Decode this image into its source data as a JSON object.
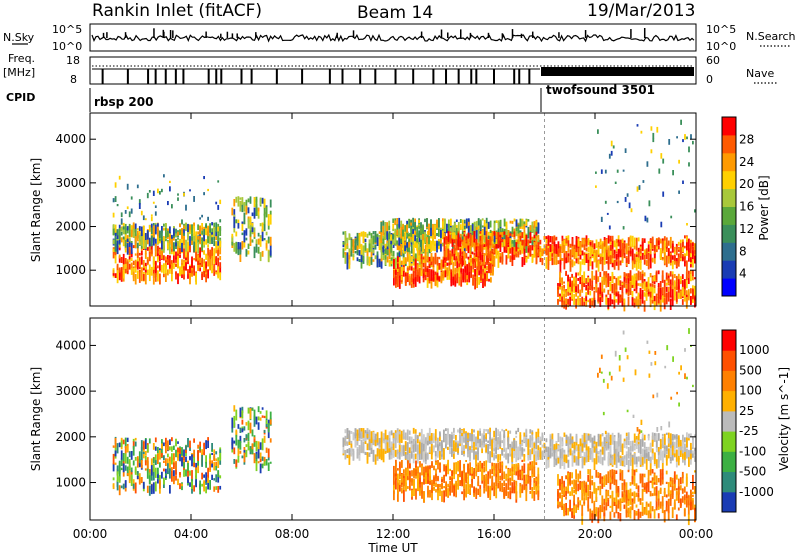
{
  "header": {
    "title": "Rankin Inlet (fitACF)",
    "beam": "Beam 14",
    "date": "19/Mar/2013"
  },
  "left_labels": {
    "nsky": "N.Sky",
    "freq": "Freq.",
    "freq_unit": "[MHz]",
    "cpid": "CPID"
  },
  "right_labels": {
    "nsearch": "N.Search",
    "nave": "Nave"
  },
  "nsky_ticks": {
    "top": "10^5",
    "bottom": "10^0"
  },
  "nsearch_ticks": {
    "top": "10^5",
    "bottom": "10^0"
  },
  "freq_ticks": {
    "top": "18",
    "bottom": "8"
  },
  "nave_ticks": {
    "top": "60",
    "bottom": "0"
  },
  "cpid": {
    "mode1": "rbsp 200",
    "mode2": "twofsound 3501",
    "mode2_start_hour": 18.0
  },
  "colors": {
    "red": "#ff0000",
    "orange": "#ff8c00",
    "yellow": "#ffd000",
    "green": "#3cb043",
    "teal": "#2e8b57",
    "blue": "#1a3cb4",
    "grey": "#bbbbbb"
  },
  "chart_data": [
    {
      "type": "heatmap",
      "name": "power-panel",
      "ylabel": "Slant Range [km]",
      "yticks": [
        "1000",
        "2000",
        "3000",
        "4000"
      ],
      "ylim": [
        180,
        4600
      ],
      "xlim": [
        0,
        24
      ],
      "xticks": [
        "00:00",
        "04:00",
        "08:00",
        "12:00",
        "16:00",
        "20:00",
        "00:00"
      ],
      "colorbar": {
        "label": "Power [dB]",
        "ticks": [
          "4",
          "8",
          "12",
          "16",
          "20",
          "24",
          "28"
        ],
        "colors": [
          "#0000ff",
          "#1a3cb4",
          "#2e6e8e",
          "#3a8f5a",
          "#5aa83a",
          "#a8c83a",
          "#ffd000",
          "#ff9a00",
          "#ff5a00",
          "#ff0000"
        ]
      },
      "regions": [
        {
          "t": [
            0.9,
            5.2
          ],
          "r": [
            900,
            1600
          ],
          "level": "high"
        },
        {
          "t": [
            0.9,
            5.2
          ],
          "r": [
            1600,
            2100
          ],
          "level": "mid"
        },
        {
          "t": [
            0.9,
            5.2
          ],
          "r": [
            2100,
            3200
          ],
          "level": "sparse"
        },
        {
          "t": [
            5.6,
            7.2
          ],
          "r": [
            1400,
            2700
          ],
          "level": "mid"
        },
        {
          "t": [
            10.0,
            13.5
          ],
          "r": [
            1200,
            1900
          ],
          "level": "mid"
        },
        {
          "t": [
            11.5,
            17.8
          ],
          "r": [
            1600,
            2200
          ],
          "level": "mid"
        },
        {
          "t": [
            12.0,
            16.0
          ],
          "r": [
            800,
            1400
          ],
          "level": "high"
        },
        {
          "t": [
            14.0,
            17.8
          ],
          "r": [
            1300,
            1900
          ],
          "level": "high"
        },
        {
          "t": [
            17.8,
            24.0
          ],
          "r": [
            1200,
            1800
          ],
          "level": "high"
        },
        {
          "t": [
            18.5,
            24.0
          ],
          "r": [
            300,
            1000
          ],
          "level": "high"
        },
        {
          "t": [
            20.0,
            24.0
          ],
          "r": [
            2000,
            4500
          ],
          "level": "sparse"
        }
      ]
    },
    {
      "type": "heatmap",
      "name": "velocity-panel",
      "ylabel": "Slant Range [km]",
      "yticks": [
        "1000",
        "2000",
        "3000",
        "4000"
      ],
      "ylim": [
        180,
        4600
      ],
      "xlim": [
        0,
        24
      ],
      "xlabel": "Time UT",
      "xticks": [
        "00:00",
        "04:00",
        "08:00",
        "12:00",
        "16:00",
        "20:00",
        "00:00"
      ],
      "colorbar": {
        "label": "Velocity [m s^-1]",
        "ticks": [
          "1000",
          "500",
          "100",
          "25",
          "-25",
          "-100",
          "-500",
          "-1000"
        ],
        "colors": [
          "#1a3cb4",
          "#2e8b7a",
          "#3cb043",
          "#7ed321",
          "#bbbbbb",
          "#ffb000",
          "#ff8000",
          "#ff5000",
          "#ff0000"
        ]
      },
      "regions": [
        {
          "t": [
            0.9,
            5.2
          ],
          "r": [
            900,
            2000
          ],
          "level": "mixed"
        },
        {
          "t": [
            5.6,
            7.2
          ],
          "r": [
            1400,
            2700
          ],
          "level": "mixed"
        },
        {
          "t": [
            10.0,
            17.8
          ],
          "r": [
            1600,
            2200
          ],
          "level": "grey"
        },
        {
          "t": [
            12.0,
            17.8
          ],
          "r": [
            800,
            1500
          ],
          "level": "orange"
        },
        {
          "t": [
            17.8,
            24.0
          ],
          "r": [
            1500,
            2100
          ],
          "level": "grey"
        },
        {
          "t": [
            18.5,
            24.0
          ],
          "r": [
            300,
            1300
          ],
          "level": "orange"
        },
        {
          "t": [
            20.0,
            24.0
          ],
          "r": [
            2000,
            4500
          ],
          "level": "sparse-orange"
        }
      ]
    }
  ]
}
